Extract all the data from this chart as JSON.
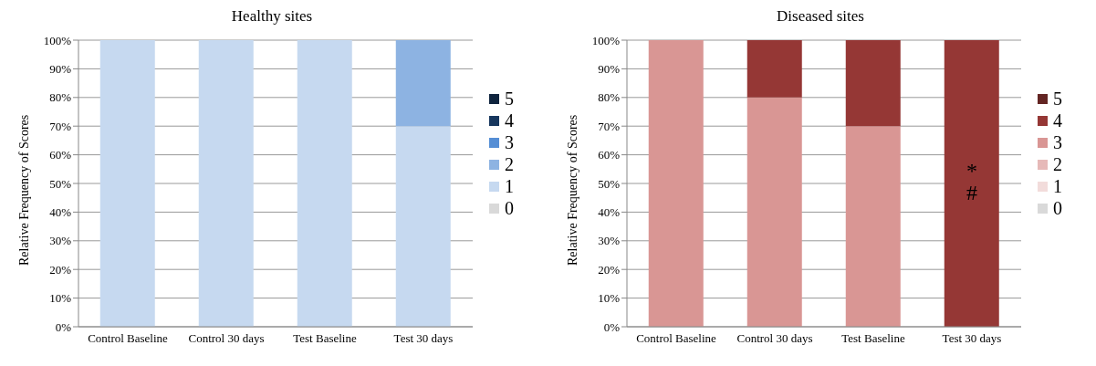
{
  "chart_data": [
    {
      "type": "bar",
      "title": "Healthy sites",
      "ylabel": "Relative Frequency of Scores",
      "categories": [
        "Control Baseline",
        "Control 30 days",
        "Test Baseline",
        "Test 30 days"
      ],
      "stacked": true,
      "legend": "right",
      "grid": "y",
      "ylim": [
        0,
        100
      ],
      "yticks": [
        {
          "value": 0,
          "label": "0%"
        },
        {
          "value": 10,
          "label": "10%"
        },
        {
          "value": 20,
          "label": "20%"
        },
        {
          "value": 30,
          "label": "30%"
        },
        {
          "value": 40,
          "label": "40%"
        },
        {
          "value": 50,
          "label": "50%"
        },
        {
          "value": 60,
          "label": "60%"
        },
        {
          "value": 70,
          "label": "70%"
        },
        {
          "value": 80,
          "label": "80%"
        },
        {
          "value": 90,
          "label": "90%"
        },
        {
          "value": 100,
          "label": "100%"
        }
      ],
      "series": [
        {
          "name": "0",
          "color": "#d9d9d9",
          "values": [
            0,
            0,
            0,
            0
          ]
        },
        {
          "name": "1",
          "color": "#c6d9f0",
          "values": [
            100,
            100,
            100,
            70
          ]
        },
        {
          "name": "2",
          "color": "#8db3e2",
          "values": [
            0,
            0,
            0,
            30
          ]
        },
        {
          "name": "3",
          "color": "#558ed5",
          "values": [
            0,
            0,
            0,
            0
          ]
        },
        {
          "name": "4",
          "color": "#17375e",
          "values": [
            0,
            0,
            0,
            0
          ]
        },
        {
          "name": "5",
          "color": "#0f243e",
          "values": [
            0,
            0,
            0,
            0
          ]
        }
      ]
    },
    {
      "type": "bar",
      "title": "Diseased sites",
      "ylabel": "Relative Frequency of Scores",
      "categories": [
        "Control Baseline",
        "Control 30 days",
        "Test Baseline",
        "Test 30 days"
      ],
      "stacked": true,
      "legend": "right",
      "grid": "y",
      "ylim": [
        0,
        100
      ],
      "yticks": [
        {
          "value": 0,
          "label": "0%"
        },
        {
          "value": 10,
          "label": "10%"
        },
        {
          "value": 20,
          "label": "20%"
        },
        {
          "value": 30,
          "label": "30%"
        },
        {
          "value": 40,
          "label": "40%"
        },
        {
          "value": 50,
          "label": "50%"
        },
        {
          "value": 60,
          "label": "60%"
        },
        {
          "value": 70,
          "label": "70%"
        },
        {
          "value": 80,
          "label": "80%"
        },
        {
          "value": 90,
          "label": "90%"
        },
        {
          "value": 100,
          "label": "100%"
        }
      ],
      "annotations": [
        "*",
        "#"
      ],
      "series": [
        {
          "name": "0",
          "color": "#d9d9d9",
          "values": [
            0,
            0,
            0,
            0
          ]
        },
        {
          "name": "1",
          "color": "#f2dcdb",
          "values": [
            0,
            0,
            0,
            0
          ]
        },
        {
          "name": "2",
          "color": "#e6b9b8",
          "values": [
            0,
            0,
            0,
            0
          ]
        },
        {
          "name": "3",
          "color": "#d99694",
          "values": [
            100,
            80,
            70,
            0
          ]
        },
        {
          "name": "4",
          "color": "#953735",
          "values": [
            0,
            20,
            30,
            100
          ]
        },
        {
          "name": "5",
          "color": "#632523",
          "values": [
            0,
            0,
            0,
            0
          ]
        }
      ]
    }
  ]
}
